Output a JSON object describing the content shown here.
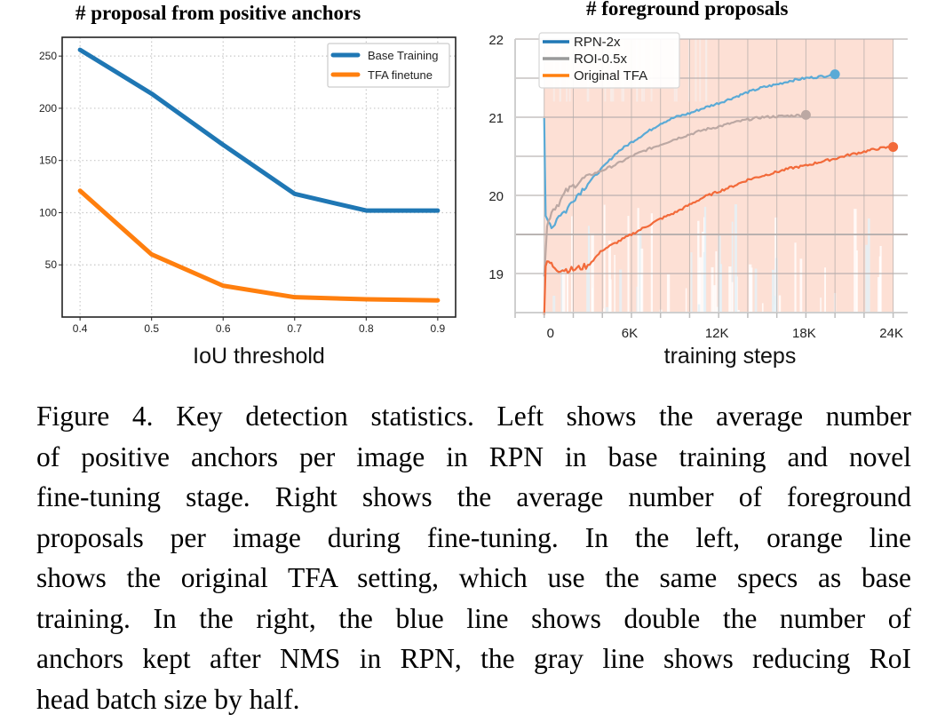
{
  "chart_data": [
    {
      "type": "line",
      "title": "# proposal from positive anchors",
      "xlabel": "IoU threshold",
      "ylabel": "",
      "x": [
        0.4,
        0.5,
        0.6,
        0.7,
        0.8,
        0.9
      ],
      "x_tick_labels": [
        "0.4",
        "0.5",
        "0.6",
        "0.7",
        "0.8",
        "0.9"
      ],
      "y_ticks": [
        50,
        100,
        150,
        200,
        250
      ],
      "y_tick_labels": [
        "50",
        "100",
        "150",
        "200",
        "250"
      ],
      "xlim": [
        0.375,
        0.925
      ],
      "ylim": [
        0,
        268
      ],
      "grid": "dotted",
      "legend_position": "top-right",
      "series": [
        {
          "name": "Base Training",
          "color": "#1f77b4",
          "values": [
            256,
            214,
            165,
            118,
            102,
            102
          ]
        },
        {
          "name": "TFA finetune",
          "color": "#ff7f0e",
          "values": [
            121,
            60,
            30,
            19,
            17,
            16
          ]
        }
      ]
    },
    {
      "type": "line",
      "title": "# foreground proposals",
      "xlabel": "training steps",
      "ylabel": "",
      "x_ticks": [
        0,
        6000,
        12000,
        18000,
        24000
      ],
      "x_tick_labels": [
        "0",
        "6K",
        "12K",
        "18K",
        "24K"
      ],
      "y_ticks": [
        19,
        20,
        21,
        22
      ],
      "y_tick_labels": [
        "19",
        "20",
        "21",
        "22"
      ],
      "xlim": [
        -2000,
        25000
      ],
      "ylim": [
        18.5,
        22
      ],
      "grid": "solid",
      "legend_position": "top-left",
      "series": [
        {
          "name": "RPN-2x",
          "color": "#5aaad6",
          "legend_color": "#1f77b4",
          "x": [
            0,
            100,
            300,
            600,
            1000,
            1500,
            2000,
            3000,
            4000,
            5000,
            6000,
            7000,
            8000,
            9000,
            10000,
            11000,
            12000,
            13000,
            14000,
            15000,
            16000,
            17000,
            18000,
            19000,
            20000
          ],
          "values": [
            21.0,
            19.7,
            19.65,
            19.6,
            19.75,
            19.8,
            19.95,
            20.15,
            20.35,
            20.55,
            20.68,
            20.8,
            20.92,
            21.0,
            21.05,
            21.12,
            21.18,
            21.25,
            21.32,
            21.38,
            21.42,
            21.47,
            21.5,
            21.52,
            21.55
          ]
        },
        {
          "name": "ROI-0.5x",
          "color": "#bca8a3",
          "legend_color": "#999999",
          "x": [
            0,
            200,
            500,
            1000,
            1500,
            2000,
            3000,
            4000,
            5000,
            6000,
            7000,
            8000,
            9000,
            10000,
            11000,
            12000,
            13000,
            14000,
            15000,
            16000,
            17000,
            18000
          ],
          "values": [
            19.0,
            19.6,
            19.8,
            19.9,
            20.05,
            20.12,
            20.25,
            20.32,
            20.4,
            20.5,
            20.58,
            20.65,
            20.72,
            20.78,
            20.84,
            20.88,
            20.93,
            20.97,
            21.0,
            21.01,
            21.02,
            21.03
          ]
        },
        {
          "name": "Original TFA",
          "color": "#f26a3a",
          "legend_color": "#ff7f0e",
          "x": [
            0,
            100,
            300,
            600,
            1000,
            1500,
            2000,
            3000,
            4000,
            5000,
            6000,
            7000,
            8000,
            9000,
            10000,
            11000,
            12000,
            13000,
            14000,
            15000,
            16000,
            17000,
            18000,
            19000,
            20000,
            21000,
            22000,
            23000,
            24000
          ],
          "values": [
            18.5,
            19.1,
            19.15,
            19.1,
            19.05,
            19.05,
            19.05,
            19.1,
            19.3,
            19.4,
            19.5,
            19.6,
            19.7,
            19.78,
            19.88,
            19.98,
            20.05,
            20.12,
            20.2,
            20.25,
            20.3,
            20.35,
            20.38,
            20.43,
            20.47,
            20.52,
            20.56,
            20.6,
            20.62
          ]
        }
      ],
      "end_markers": true,
      "background_band_color": "#fde0d5"
    }
  ],
  "caption": {
    "lines": [
      "Figure 4. Key detection statistics. Left shows the average number",
      "of positive anchors per image in RPN in base training and novel",
      "fine-tuning stage. Right shows the average number of foreground",
      "proposals per image during fine-tuning.  In the left, orange line",
      "shows the original TFA setting, which use the same specs as base",
      "training.  In the right, the blue line shows double the number of",
      "anchors kept after NMS in RPN, the gray line shows reducing RoI",
      "head batch size by half."
    ]
  }
}
